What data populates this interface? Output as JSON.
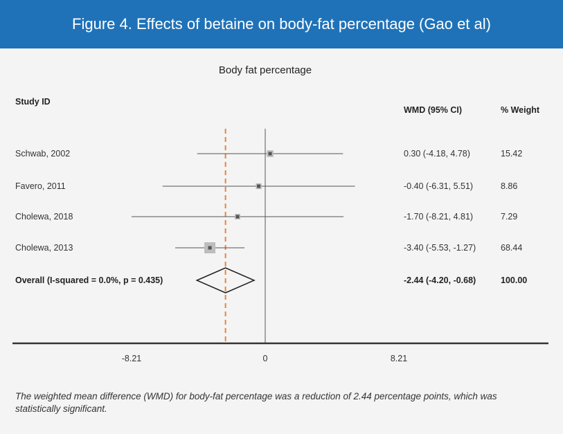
{
  "header": {
    "title": "Figure 4. Effects of betaine on body-fat percentage (Gao et al)"
  },
  "chart_data": {
    "type": "forest",
    "title": "Body fat percentage",
    "columns": {
      "study": "Study ID",
      "effect": "WMD (95% CI)",
      "weight": "% Weight"
    },
    "studies": [
      {
        "label": "Schwab, 2002",
        "wmd": 0.3,
        "lower": -4.18,
        "upper": 4.78,
        "ci_text": "0.30 (-4.18, 4.78)",
        "weight": 15.42,
        "weight_text": "15.42"
      },
      {
        "label": "Favero, 2011",
        "wmd": -0.4,
        "lower": -6.31,
        "upper": 5.51,
        "ci_text": "-0.40 (-6.31, 5.51)",
        "weight": 8.86,
        "weight_text": "8.86"
      },
      {
        "label": "Cholewa, 2018",
        "wmd": -1.7,
        "lower": -8.21,
        "upper": 4.81,
        "ci_text": "-1.70 (-8.21, 4.81)",
        "weight": 7.29,
        "weight_text": "7.29"
      },
      {
        "label": "Cholewa, 2013",
        "wmd": -3.4,
        "lower": -5.53,
        "upper": -1.27,
        "ci_text": "-3.40 (-5.53, -1.27)",
        "weight": 68.44,
        "weight_text": "68.44"
      }
    ],
    "overall": {
      "label": "Overall (I-squared = 0.0%, p = 0.435)",
      "wmd": -2.44,
      "lower": -4.2,
      "upper": -0.68,
      "ci_text": "-2.44 (-4.20, -0.68)",
      "weight_text": "100.00"
    },
    "x_ticks": [
      {
        "value": -8.21,
        "label": "-8.21"
      },
      {
        "value": 0,
        "label": "0"
      },
      {
        "value": 8.21,
        "label": "8.21"
      }
    ],
    "reference_line": 0,
    "overall_line_color": "#e8833a",
    "marker_color": "#555555",
    "weight_box_color": "#bdbdbd"
  },
  "caption": "The weighted mean difference (WMD) for body-fat percentage was a reduction of 2.44 percentage points, which was statistically significant."
}
